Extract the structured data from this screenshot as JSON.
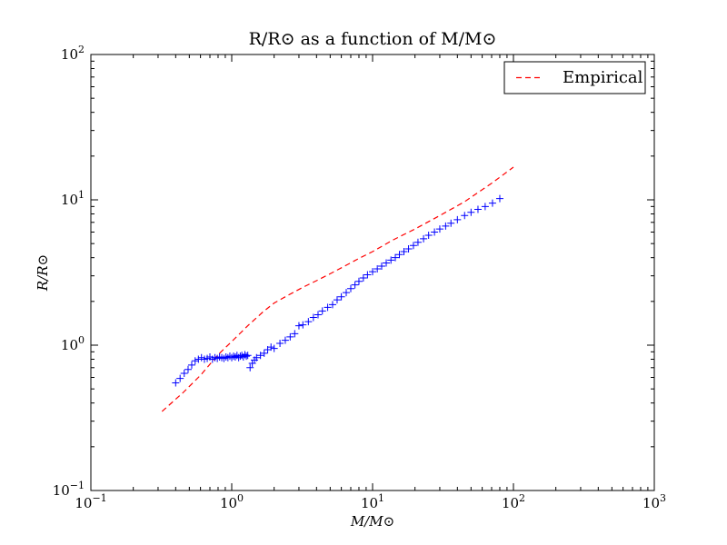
{
  "chart_data": {
    "type": "scatter",
    "title": "R/R⊙ as a function of M/M⊙",
    "xlabel": "M/M⊙",
    "ylabel": "R/R⊙",
    "xscale": "log",
    "yscale": "log",
    "xlim": [
      0.1,
      1000
    ],
    "ylim": [
      0.1,
      100
    ],
    "xticks": [
      {
        "value": 0.1,
        "base": "10",
        "exp": "−1"
      },
      {
        "value": 1,
        "base": "10",
        "exp": "0"
      },
      {
        "value": 10,
        "base": "10",
        "exp": "1"
      },
      {
        "value": 100,
        "base": "10",
        "exp": "2"
      },
      {
        "value": 1000,
        "base": "10",
        "exp": "3"
      }
    ],
    "yticks": [
      {
        "value": 0.1,
        "base": "10",
        "exp": "−1"
      },
      {
        "value": 1,
        "base": "10",
        "exp": "0"
      },
      {
        "value": 10,
        "base": "10",
        "exp": "1"
      },
      {
        "value": 100,
        "base": "10",
        "exp": "2"
      }
    ],
    "legend_position": "top-right",
    "series": [
      {
        "name": "Empirical",
        "style": "dashed-line",
        "color": "#ff0000",
        "x": [
          0.32,
          0.45,
          0.6,
          0.8,
          1.0,
          1.3,
          1.65,
          2.0,
          2.5,
          3.2,
          4.0,
          5.0,
          6.5,
          8.0,
          10,
          14,
          20,
          30,
          45,
          70,
          100
        ],
        "y": [
          0.35,
          0.47,
          0.62,
          0.86,
          1.06,
          1.36,
          1.68,
          1.95,
          2.2,
          2.5,
          2.78,
          3.1,
          3.55,
          3.95,
          4.4,
          5.3,
          6.3,
          7.8,
          9.7,
          13.0,
          16.8
        ]
      },
      {
        "name": "",
        "style": "plus-markers",
        "color": "#0000ff",
        "x": [
          0.4,
          0.43,
          0.46,
          0.49,
          0.52,
          0.55,
          0.58,
          0.61,
          0.64,
          0.67,
          0.7,
          0.73,
          0.76,
          0.79,
          0.82,
          0.85,
          0.88,
          0.91,
          0.94,
          0.97,
          1.0,
          1.03,
          1.06,
          1.09,
          1.12,
          1.15,
          1.18,
          1.21,
          1.24,
          1.27,
          1.3,
          1.35,
          1.4,
          1.45,
          1.5,
          1.6,
          1.7,
          1.8,
          1.9,
          2.0,
          2.2,
          2.4,
          2.6,
          2.8,
          3.0,
          3.2,
          3.5,
          3.8,
          4.1,
          4.4,
          4.8,
          5.2,
          5.6,
          6.0,
          6.5,
          7.0,
          7.5,
          8.0,
          8.6,
          9.2,
          10.0,
          10.8,
          11.6,
          12.5,
          13.5,
          14.5,
          15.5,
          16.7,
          18,
          19.5,
          21,
          23,
          25,
          27.5,
          30,
          33,
          36,
          40,
          45,
          50,
          56,
          63,
          71,
          80
        ],
        "y": [
          0.55,
          0.59,
          0.64,
          0.68,
          0.73,
          0.78,
          0.8,
          0.82,
          0.8,
          0.81,
          0.83,
          0.8,
          0.82,
          0.81,
          0.83,
          0.82,
          0.81,
          0.83,
          0.82,
          0.84,
          0.82,
          0.84,
          0.83,
          0.85,
          0.82,
          0.84,
          0.85,
          0.83,
          0.86,
          0.84,
          0.85,
          0.7,
          0.75,
          0.79,
          0.82,
          0.85,
          0.88,
          0.93,
          0.97,
          0.95,
          1.03,
          1.08,
          1.14,
          1.2,
          1.36,
          1.38,
          1.45,
          1.55,
          1.62,
          1.72,
          1.82,
          1.9,
          2.05,
          2.15,
          2.3,
          2.45,
          2.6,
          2.75,
          2.9,
          3.05,
          3.2,
          3.35,
          3.5,
          3.68,
          3.85,
          4.0,
          4.2,
          4.4,
          4.6,
          4.85,
          5.1,
          5.4,
          5.7,
          6.0,
          6.3,
          6.6,
          6.9,
          7.3,
          7.8,
          8.2,
          8.6,
          9.0,
          9.5,
          10.2
        ]
      }
    ]
  }
}
